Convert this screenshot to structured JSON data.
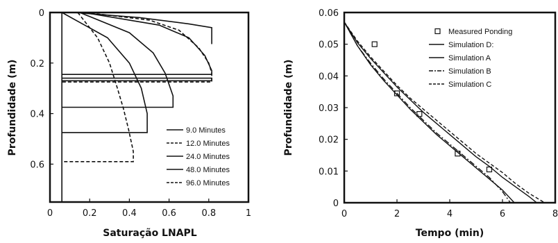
{
  "chart_data": [
    {
      "type": "line",
      "xlabel": "Saturação LNAPL",
      "ylabel": "Profundidade (m)",
      "xlim": [
        0,
        1
      ],
      "ylim": [
        0,
        0.75
      ],
      "y_inverted": true,
      "x_ticks": [
        "0",
        "0.2",
        "0.4",
        "0.6",
        "0.8",
        "1"
      ],
      "x_tick_values": [
        0,
        0.2,
        0.4,
        0.6,
        0.8,
        1.0
      ],
      "y_ticks": [
        "0",
        "0.2",
        "0.4",
        "0.6"
      ],
      "y_tick_values": [
        0,
        0.2,
        0.4,
        0.6
      ],
      "grid": false,
      "legend_position": "bottom-right",
      "residual_saturation": 0.06,
      "series": [
        {
          "name": "9.0 Minutes",
          "dash": "solid",
          "x": [
            0.06,
            0.29,
            0.4,
            0.46,
            0.49,
            0.49,
            0.06
          ],
          "y": [
            0.0,
            0.1,
            0.2,
            0.3,
            0.4,
            0.475,
            0.475
          ]
        },
        {
          "name": "12.0 Minutes",
          "dash": "dashed",
          "x": [
            0.14,
            0.24,
            0.3,
            0.34,
            0.37,
            0.395,
            0.42,
            0.42,
            0.06
          ],
          "y": [
            0.0,
            0.1,
            0.2,
            0.3,
            0.38,
            0.46,
            0.55,
            0.59,
            0.59
          ]
        },
        {
          "name": "24.0 Minutes",
          "dash": "solid",
          "x": [
            0.15,
            0.4,
            0.52,
            0.58,
            0.62,
            0.62,
            0.06
          ],
          "y": [
            0.0,
            0.08,
            0.16,
            0.24,
            0.33,
            0.375,
            0.375
          ]
        },
        {
          "name": "48.0 Minutes",
          "dash": "solid",
          "x": [
            0.17,
            0.55,
            0.7,
            0.78,
            0.815,
            0.815,
            0.06
          ],
          "y": [
            0.0,
            0.05,
            0.1,
            0.17,
            0.23,
            0.245,
            0.245
          ]
        },
        {
          "name": "96.0 Minutes",
          "dash": "dashed",
          "x": [
            0.18,
            0.5,
            0.65,
            0.75,
            0.8,
            0.815,
            0.815,
            0.06
          ],
          "y": [
            0.0,
            0.03,
            0.07,
            0.14,
            0.2,
            0.24,
            0.275,
            0.275
          ]
        },
        {
          "name": "",
          "dash": "solid",
          "x": [
            0.12,
            0.45,
            0.7,
            0.815,
            0.815
          ],
          "y": [
            0.0,
            0.02,
            0.045,
            0.06,
            0.125
          ]
        },
        {
          "name": "",
          "dash": "solid",
          "x": [
            0.06,
            0.815,
            0.815,
            0.06
          ],
          "y": [
            0.26,
            0.26,
            0.27,
            0.27
          ]
        }
      ]
    },
    {
      "type": "line",
      "xlabel": "Tempo (min)",
      "ylabel": "Profundidade (m)",
      "xlim": [
        0,
        8
      ],
      "ylim": [
        0,
        0.06
      ],
      "x_ticks": [
        "0",
        "2",
        "4",
        "6",
        "8"
      ],
      "x_tick_values": [
        0,
        2,
        4,
        6,
        8
      ],
      "y_ticks": [
        "0",
        "0.01",
        "0.02",
        "0.03",
        "0.04",
        "0.05",
        "0.06"
      ],
      "y_tick_values": [
        0,
        0.01,
        0.02,
        0.03,
        0.04,
        0.05,
        0.06
      ],
      "grid": false,
      "legend_position": "top-right",
      "series": [
        {
          "name": "Measured Ponding",
          "kind": "markers",
          "marker": "square",
          "x": [
            1.15,
            2.0,
            2.85,
            4.3,
            5.5
          ],
          "y": [
            0.05,
            0.0345,
            0.028,
            0.0155,
            0.0105
          ]
        },
        {
          "name": "Simulation D:",
          "dash": "solid",
          "x": [
            0,
            0.5,
            1,
            1.5,
            2,
            2.5,
            3,
            3.5,
            4,
            4.5,
            5,
            5.5,
            6,
            6.45
          ],
          "y": [
            0.057,
            0.0495,
            0.0435,
            0.0385,
            0.034,
            0.0295,
            0.0255,
            0.0215,
            0.018,
            0.0145,
            0.011,
            0.0075,
            0.004,
            0.0
          ]
        },
        {
          "name": "Simulation A",
          "dash": "solid",
          "x": [
            0,
            0.5,
            1,
            1.5,
            2,
            2.5,
            3,
            3.5,
            4,
            4.5,
            5,
            5.5,
            6,
            6.5,
            7,
            7.3
          ],
          "y": [
            0.057,
            0.0505,
            0.0455,
            0.041,
            0.0365,
            0.0325,
            0.0285,
            0.025,
            0.0215,
            0.018,
            0.0145,
            0.0115,
            0.008,
            0.005,
            0.002,
            0.0
          ]
        },
        {
          "name": "Simulation B",
          "dash": "dashdot",
          "x": [
            0,
            0.5,
            1,
            1.5,
            2,
            2.5,
            3,
            3.5,
            4,
            4.5,
            5,
            5.5,
            6,
            6.3
          ],
          "y": [
            0.057,
            0.0495,
            0.044,
            0.039,
            0.0345,
            0.03,
            0.026,
            0.022,
            0.0185,
            0.015,
            0.0115,
            0.008,
            0.0035,
            0.0
          ]
        },
        {
          "name": "Simulation C",
          "dash": "dashed",
          "x": [
            0,
            0.5,
            1,
            1.5,
            2,
            2.5,
            3,
            3.5,
            4,
            4.5,
            5,
            5.5,
            6,
            6.5,
            7,
            7.6
          ],
          "y": [
            0.057,
            0.051,
            0.046,
            0.0415,
            0.037,
            0.033,
            0.0295,
            0.026,
            0.0225,
            0.019,
            0.0155,
            0.0125,
            0.0095,
            0.006,
            0.003,
            0.0
          ]
        }
      ]
    }
  ]
}
